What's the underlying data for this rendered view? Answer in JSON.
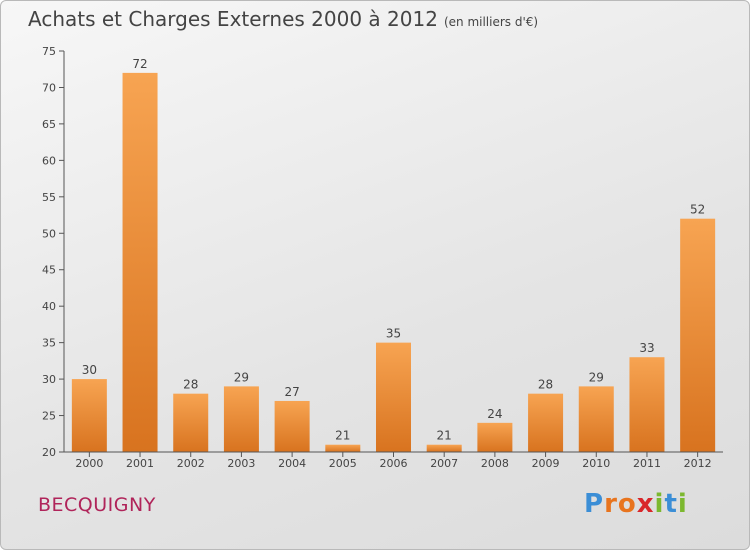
{
  "title": "Achats et Charges Externes 2000 à 2012",
  "subtitle": "(en milliers d'€)",
  "commune": "BECQUIGNY",
  "logo": {
    "text": "Proxiti",
    "letters": [
      "P",
      "r",
      "o",
      "x",
      "i",
      "t",
      "i"
    ],
    "colors": [
      "#3b8ed6",
      "#e8741e",
      "#e8741e",
      "#d9262a",
      "#7cb82f",
      "#3b8ed6",
      "#7cb82f"
    ]
  },
  "colors": {
    "bar_light": "#f7a452",
    "bar_dark": "#d8731f",
    "axis": "#555555",
    "grid": "#c8c8c8"
  },
  "chart_data": {
    "type": "bar",
    "categories": [
      "2000",
      "2001",
      "2002",
      "2003",
      "2004",
      "2005",
      "2006",
      "2007",
      "2008",
      "2009",
      "2010",
      "2011",
      "2012"
    ],
    "values": [
      30,
      72,
      28,
      29,
      27,
      21,
      35,
      21,
      24,
      28,
      29,
      33,
      52
    ],
    "title": "Achats et Charges Externes 2000 à 2012",
    "subtitle": "(en milliers d'€)",
    "xlabel": "",
    "ylabel": "",
    "ylim": [
      20,
      75
    ],
    "yticks": [
      20,
      25,
      30,
      35,
      40,
      45,
      50,
      55,
      60,
      65,
      70,
      75
    ],
    "grid": false,
    "data_labels": true
  }
}
